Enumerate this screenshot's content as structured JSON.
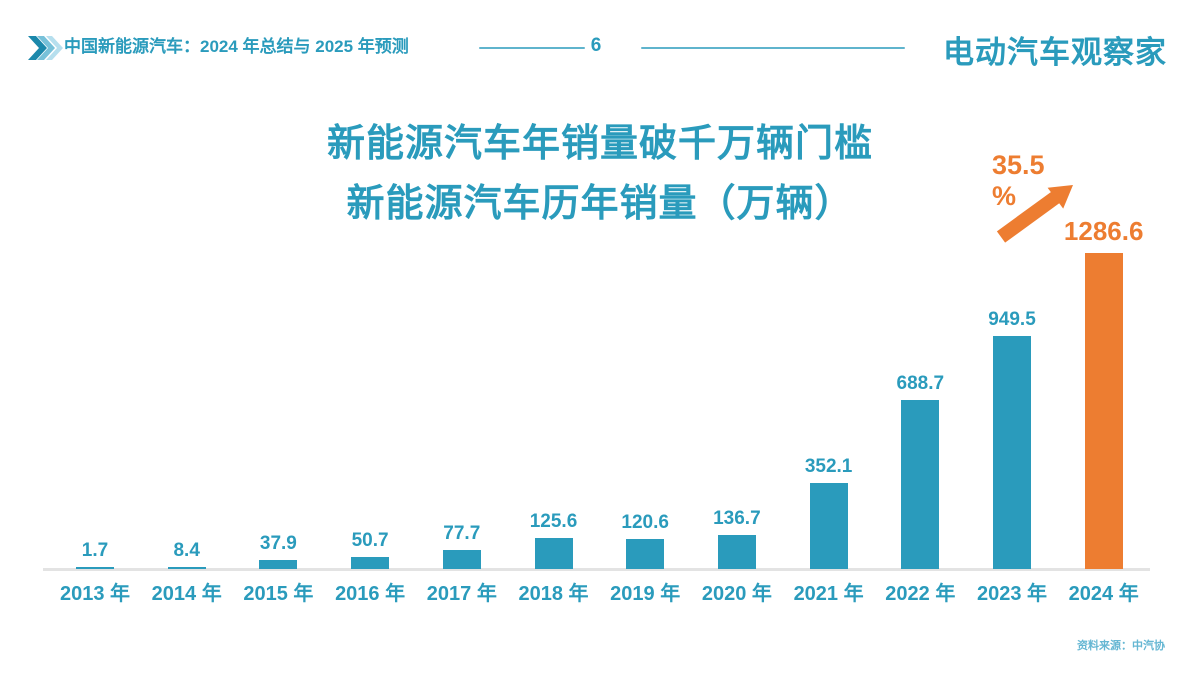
{
  "header": {
    "title": "中国新能源汽车：2024 年总结与 2025 年预测",
    "page_number": "6",
    "logo": "电动汽车观察家"
  },
  "chart_data": {
    "type": "bar",
    "title_line1": "新能源汽车年销量破千万辆门槛",
    "title_line2": "新能源汽车历年销量（万辆）",
    "categories": [
      "2013 年",
      "2014 年",
      "2015 年",
      "2016 年",
      "2017 年",
      "2018 年",
      "2019 年",
      "2020 年",
      "2021 年",
      "2022 年",
      "2023 年",
      "2024 年"
    ],
    "values": [
      1.7,
      8.4,
      37.9,
      50.7,
      77.7,
      125.6,
      120.6,
      136.7,
      352.1,
      688.7,
      949.5,
      1286.6
    ],
    "highlight_index": 11,
    "annotation": {
      "growth_line1": "35.5",
      "growth_line2": "%"
    },
    "ylim": [
      0,
      1350
    ],
    "grid": false,
    "legend": "none",
    "bar_color": "#2a9bbc",
    "highlight_color": "#ed7d31"
  },
  "footer": {
    "source": "资料来源：中汽协"
  },
  "colors": {
    "teal": "#2a9bbc",
    "orange": "#ed7d31",
    "light_teal": "#66b7d3",
    "axis_gray": "#e3e3e3"
  }
}
